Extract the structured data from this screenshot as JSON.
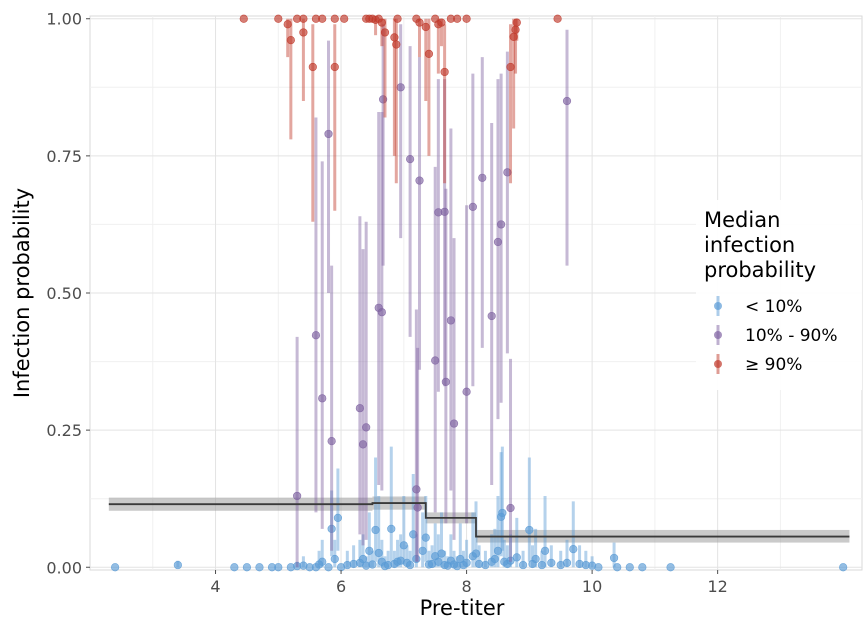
{
  "chart_data": {
    "type": "scatter",
    "xlabel": "Pre-titer",
    "ylabel": "Infection probability",
    "xlim": [
      2.0,
      14.3
    ],
    "ylim": [
      -0.005,
      1.005
    ],
    "x_ticks": [
      4,
      6,
      8,
      10,
      12
    ],
    "x_tick_labels": [
      "4",
      "6",
      "8",
      "10",
      "12"
    ],
    "y_ticks": [
      0,
      0.25,
      0.5,
      0.75,
      1.0
    ],
    "y_tick_labels": [
      "0.00",
      "0.25",
      "0.50",
      "0.75",
      "1.00"
    ],
    "grid": true,
    "legend": {
      "title": "Median\ninfection\nprobability",
      "position": "right",
      "entries": [
        {
          "label": "< 10%",
          "color": "#5b9bd5"
        },
        {
          "label": "10% - 90%",
          "color": "#8064a2"
        },
        {
          "label": "≥ 90%",
          "color": "#c0392b"
        }
      ]
    },
    "step_fit": [
      {
        "x0": 2.3,
        "x1": 6.5,
        "y": 0.115,
        "lower": 0.103,
        "upper": 0.127
      },
      {
        "x0": 6.5,
        "x1": 7.35,
        "y": 0.117,
        "lower": 0.105,
        "upper": 0.129
      },
      {
        "x0": 7.35,
        "x1": 8.15,
        "y": 0.09,
        "lower": 0.08,
        "upper": 0.1
      },
      {
        "x0": 8.15,
        "x1": 14.1,
        "y": 0.056,
        "lower": 0.045,
        "upper": 0.068
      }
    ],
    "series": [
      {
        "name": "< 10%",
        "color": "#5b9bd5",
        "points": [
          [
            2.4,
            0,
            0,
            0
          ],
          [
            3.4,
            0.004,
            0,
            0.012
          ],
          [
            4.3,
            0,
            0,
            0
          ],
          [
            4.5,
            0,
            0,
            0
          ],
          [
            4.7,
            0,
            0,
            0
          ],
          [
            4.9,
            0,
            0,
            0
          ],
          [
            5.0,
            0,
            0,
            0
          ],
          [
            5.2,
            0,
            0,
            0
          ],
          [
            5.3,
            0.002,
            0,
            0.01
          ],
          [
            5.4,
            0.003,
            0,
            0.02
          ],
          [
            5.5,
            0,
            0,
            0
          ],
          [
            5.6,
            0,
            0,
            0
          ],
          [
            5.65,
            0.005,
            0,
            0.03
          ],
          [
            5.7,
            0.01,
            0,
            0.05
          ],
          [
            5.8,
            0,
            0,
            0
          ],
          [
            5.85,
            0.07,
            0.02,
            0.14
          ],
          [
            5.9,
            0.015,
            0,
            0.05
          ],
          [
            5.95,
            0.09,
            0.03,
            0.18
          ],
          [
            6.0,
            0,
            0,
            0
          ],
          [
            6.1,
            0.004,
            0,
            0.03
          ],
          [
            6.2,
            0.006,
            0,
            0.04
          ],
          [
            6.3,
            0.008,
            0,
            0.05
          ],
          [
            6.35,
            0.015,
            0,
            0.06
          ],
          [
            6.4,
            0.003,
            0,
            0.02
          ],
          [
            6.45,
            0.03,
            0,
            0.1
          ],
          [
            6.5,
            0.005,
            0,
            0.03
          ],
          [
            6.55,
            0.068,
            0.01,
            0.2
          ],
          [
            6.6,
            0.026,
            0,
            0.13
          ],
          [
            6.65,
            0.01,
            0,
            0.05
          ],
          [
            6.7,
            0.002,
            0,
            0.02
          ],
          [
            6.75,
            0.004,
            0,
            0.03
          ],
          [
            6.8,
            0.07,
            0.01,
            0.22
          ],
          [
            6.85,
            0.006,
            0,
            0.03
          ],
          [
            6.9,
            0.01,
            0,
            0.05
          ],
          [
            6.95,
            0.012,
            0,
            0.06
          ],
          [
            7.0,
            0.04,
            0.005,
            0.13
          ],
          [
            7.05,
            0.008,
            0,
            0.04
          ],
          [
            7.1,
            0.004,
            0,
            0.03
          ],
          [
            7.15,
            0.06,
            0.01,
            0.17
          ],
          [
            7.2,
            0.015,
            0,
            0.06
          ],
          [
            7.3,
            0.03,
            0,
            0.1
          ],
          [
            7.35,
            0.054,
            0.01,
            0.13
          ],
          [
            7.4,
            0.005,
            0,
            0.03
          ],
          [
            7.45,
            0.006,
            0,
            0.04
          ],
          [
            7.5,
            0.02,
            0,
            0.08
          ],
          [
            7.55,
            0.01,
            0,
            0.06
          ],
          [
            7.6,
            0.025,
            0,
            0.1
          ],
          [
            7.65,
            0.004,
            0,
            0.03
          ],
          [
            7.7,
            0.003,
            0,
            0.02
          ],
          [
            7.75,
            0.012,
            0,
            0.06
          ],
          [
            7.8,
            0.005,
            0,
            0.03
          ],
          [
            7.85,
            0.002,
            0,
            0.02
          ],
          [
            7.9,
            0.015,
            0,
            0.08
          ],
          [
            7.95,
            0.004,
            0,
            0.03
          ],
          [
            8.0,
            0.008,
            0,
            0.05
          ],
          [
            8.1,
            0.02,
            0,
            0.1
          ],
          [
            8.15,
            0.025,
            0,
            0.12
          ],
          [
            8.2,
            0.006,
            0,
            0.04
          ],
          [
            8.3,
            0.004,
            0,
            0.03
          ],
          [
            8.4,
            0.01,
            0,
            0.06
          ],
          [
            8.45,
            0.015,
            0,
            0.07
          ],
          [
            8.5,
            0.03,
            0,
            0.13
          ],
          [
            8.55,
            0.092,
            0.02,
            0.21
          ],
          [
            8.57,
            0.099,
            0.03,
            0.22
          ],
          [
            8.6,
            0.01,
            0,
            0.05
          ],
          [
            8.65,
            0.006,
            0,
            0.04
          ],
          [
            8.7,
            0.012,
            0,
            0.06
          ],
          [
            8.8,
            0.018,
            0,
            0.09
          ],
          [
            8.9,
            0.004,
            0,
            0.03
          ],
          [
            9.0,
            0.068,
            0.01,
            0.2
          ],
          [
            9.05,
            0.006,
            0,
            0.04
          ],
          [
            9.1,
            0.015,
            0,
            0.07
          ],
          [
            9.2,
            0.004,
            0,
            0.03
          ],
          [
            9.25,
            0.03,
            0,
            0.13
          ],
          [
            9.35,
            0.008,
            0,
            0.04
          ],
          [
            9.5,
            0.004,
            0,
            0.03
          ],
          [
            9.6,
            0.008,
            0,
            0.05
          ],
          [
            9.7,
            0.033,
            0,
            0.12
          ],
          [
            9.8,
            0.006,
            0,
            0.04
          ],
          [
            9.9,
            0.004,
            0,
            0.03
          ],
          [
            10.0,
            0.003,
            0,
            0.02
          ],
          [
            10.1,
            0,
            0,
            0
          ],
          [
            10.35,
            0.017,
            0,
            0.045
          ],
          [
            10.4,
            0,
            0,
            0
          ],
          [
            10.6,
            0,
            0,
            0
          ],
          [
            10.8,
            0,
            0,
            0
          ],
          [
            11.25,
            0,
            0,
            0
          ],
          [
            14.0,
            0,
            0,
            0
          ]
        ]
      },
      {
        "name": "10% - 90%",
        "color": "#8064a2",
        "points": [
          [
            5.3,
            0.13,
            0,
            0.42
          ],
          [
            5.6,
            0.423,
            0.1,
            0.82
          ],
          [
            5.7,
            0.308,
            0.07,
            0.74
          ],
          [
            5.8,
            0.79,
            0.5,
            0.96
          ],
          [
            5.85,
            0.23,
            0.03,
            0.55
          ],
          [
            6.3,
            0.29,
            0.06,
            0.64
          ],
          [
            6.35,
            0.224,
            0.04,
            0.58
          ],
          [
            6.4,
            0.255,
            0.05,
            0.63
          ],
          [
            6.6,
            0.473,
            0.15,
            0.83
          ],
          [
            6.65,
            0.465,
            0.14,
            0.83
          ],
          [
            6.67,
            0.853,
            0.55,
            0.99
          ],
          [
            6.95,
            0.875,
            0.6,
            0.99
          ],
          [
            7.1,
            0.744,
            0.42,
            0.95
          ],
          [
            7.2,
            0.142,
            0.01,
            0.47
          ],
          [
            7.22,
            0.109,
            0.01,
            0.4
          ],
          [
            7.25,
            0.705,
            0.36,
            0.93
          ],
          [
            7.5,
            0.377,
            0.1,
            0.73
          ],
          [
            7.55,
            0.647,
            0.32,
            0.89
          ],
          [
            7.65,
            0.648,
            0.33,
            0.89
          ],
          [
            7.67,
            0.338,
            0.08,
            0.69
          ],
          [
            7.75,
            0.45,
            0.14,
            0.8
          ],
          [
            7.8,
            0.262,
            0.05,
            0.6
          ],
          [
            8.0,
            0.32,
            0.08,
            0.66
          ],
          [
            8.1,
            0.657,
            0.33,
            0.9
          ],
          [
            8.25,
            0.71,
            0.4,
            0.93
          ],
          [
            8.4,
            0.458,
            0.15,
            0.81
          ],
          [
            8.5,
            0.593,
            0.27,
            0.89
          ],
          [
            8.55,
            0.625,
            0.3,
            0.9
          ],
          [
            8.65,
            0.72,
            0.39,
            0.94
          ],
          [
            8.7,
            0.108,
            0.01,
            0.38
          ],
          [
            9.6,
            0.85,
            0.55,
            0.98
          ]
        ]
      },
      {
        "name": "≥ 90%",
        "color": "#c0392b",
        "points": [
          [
            4.45,
            1.0,
            1.0,
            1.0
          ],
          [
            5.0,
            1.0,
            1.0,
            1.0
          ],
          [
            5.15,
            0.99,
            0.93,
            1.0
          ],
          [
            5.2,
            0.961,
            0.78,
            1.0
          ],
          [
            5.3,
            1.0,
            1.0,
            1.0
          ],
          [
            5.4,
            0.975,
            0.85,
            1.0
          ],
          [
            5.4,
            1.0,
            1.0,
            1.0
          ],
          [
            5.55,
            0.912,
            0.63,
            0.99
          ],
          [
            5.6,
            1.0,
            1.0,
            1.0
          ],
          [
            5.7,
            1.0,
            1.0,
            1.0
          ],
          [
            5.9,
            0.912,
            0.65,
            0.99
          ],
          [
            5.9,
            1.0,
            1.0,
            1.0
          ],
          [
            6.05,
            1.0,
            1.0,
            1.0
          ],
          [
            6.4,
            1.0,
            1.0,
            1.0
          ],
          [
            6.45,
            1.0,
            1.0,
            1.0
          ],
          [
            6.5,
            1.0,
            1.0,
            1.0
          ],
          [
            6.55,
            0.998,
            0.97,
            1.0
          ],
          [
            6.6,
            1.0,
            1.0,
            1.0
          ],
          [
            6.65,
            0.993,
            0.95,
            1.0
          ],
          [
            6.7,
            0.975,
            0.82,
            1.0
          ],
          [
            6.85,
            0.966,
            0.75,
            1.0
          ],
          [
            6.88,
            0.953,
            0.7,
            1.0
          ],
          [
            6.9,
            1.0,
            1.0,
            1.0
          ],
          [
            7.2,
            1.0,
            1.0,
            1.0
          ],
          [
            7.25,
            0.993,
            0.93,
            1.0
          ],
          [
            7.35,
            0.985,
            0.85,
            1.0
          ],
          [
            7.4,
            0.936,
            0.75,
            1.0
          ],
          [
            7.5,
            1.0,
            1.0,
            1.0
          ],
          [
            7.55,
            0.99,
            0.9,
            1.0
          ],
          [
            7.6,
            0.993,
            0.95,
            1.0
          ],
          [
            7.65,
            0.903,
            0.7,
            0.99
          ],
          [
            7.75,
            1.0,
            1.0,
            1.0
          ],
          [
            7.85,
            1.0,
            1.0,
            1.0
          ],
          [
            8.0,
            1.0,
            1.0,
            1.0
          ],
          [
            8.7,
            0.912,
            0.7,
            0.99
          ],
          [
            8.75,
            0.967,
            0.8,
            1.0
          ],
          [
            8.78,
            0.98,
            0.9,
            1.0
          ],
          [
            8.8,
            0.993,
            0.96,
            1.0
          ],
          [
            9.45,
            1.0,
            1.0,
            1.0
          ]
        ]
      }
    ]
  }
}
